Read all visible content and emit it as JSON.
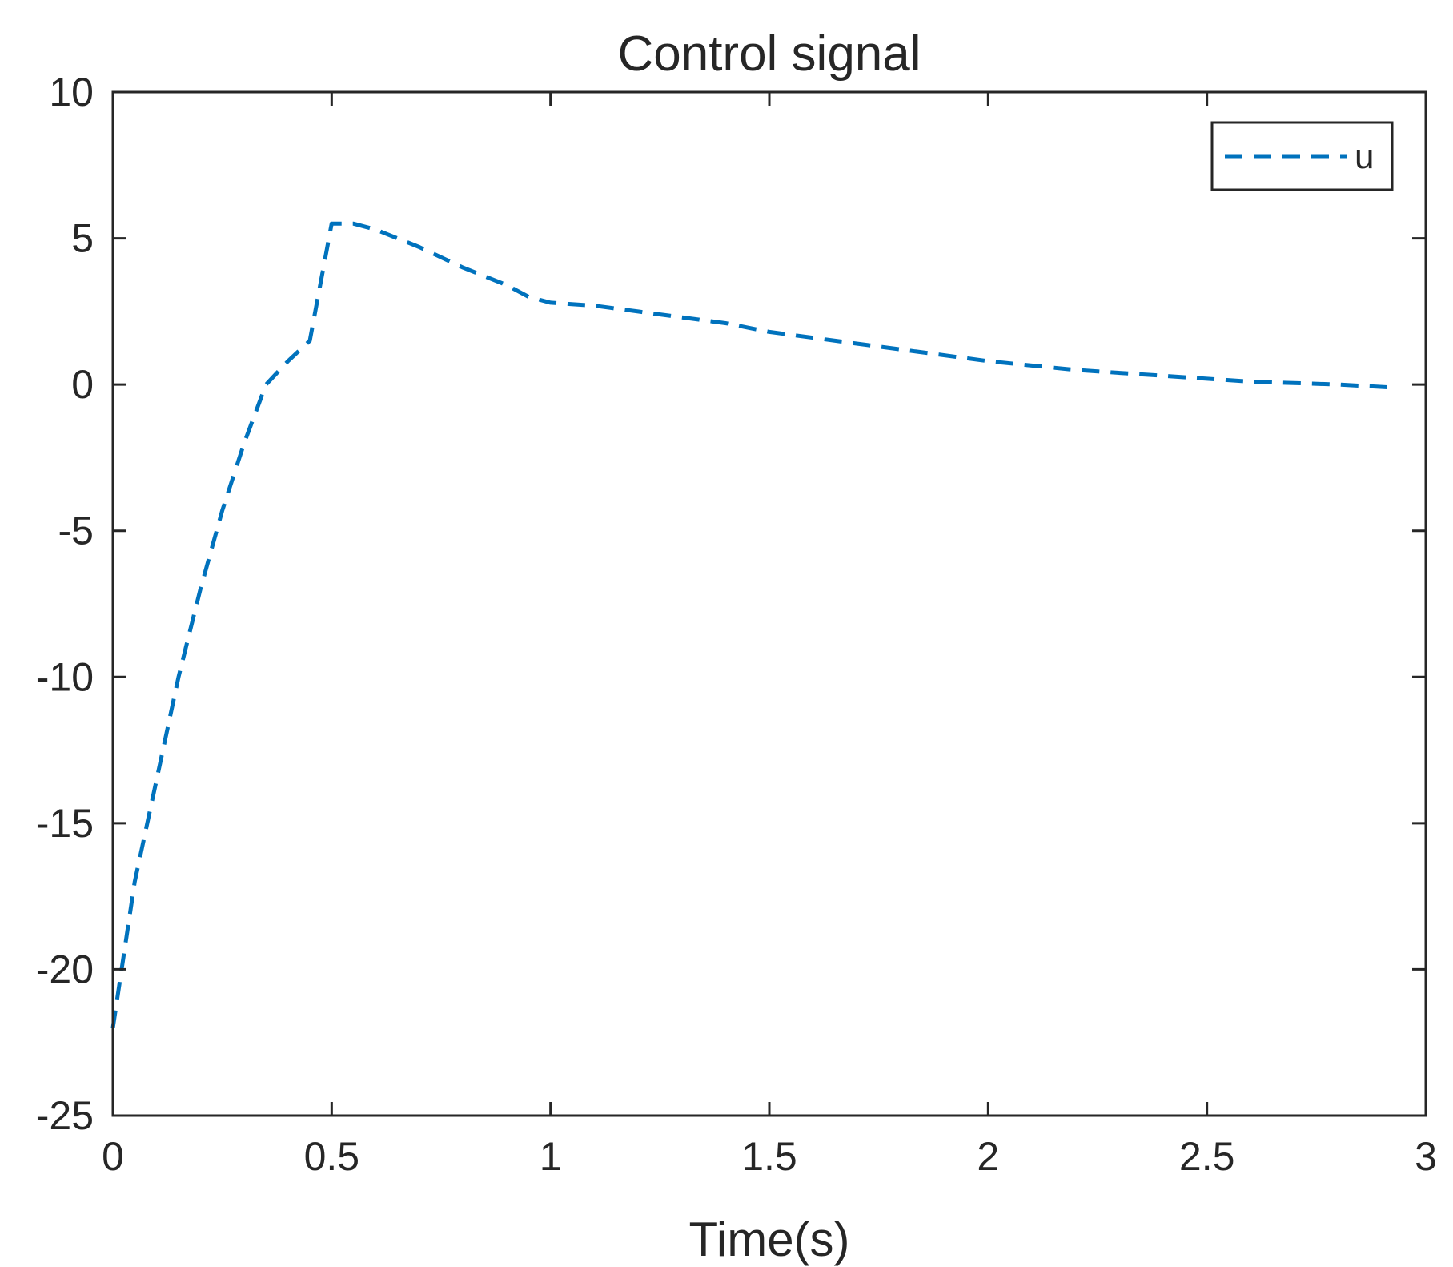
{
  "chart_data": {
    "type": "line",
    "title": "Control signal",
    "xlabel": "Time(s)",
    "ylabel": "",
    "xlim": [
      0,
      3
    ],
    "ylim": [
      -25,
      10
    ],
    "xticks": [
      0,
      0.5,
      1,
      1.5,
      2,
      2.5,
      3
    ],
    "xtick_labels": [
      "0",
      "0.5",
      "1",
      "1.5",
      "2",
      "2.5",
      "3"
    ],
    "yticks": [
      -25,
      -20,
      -15,
      -10,
      -5,
      0,
      5,
      10
    ],
    "ytick_labels": [
      "-25",
      "-20",
      "-15",
      "-10",
      "-5",
      "0",
      "5",
      "10"
    ],
    "grid": false,
    "legend_position": "top-right",
    "colors": {
      "series": "#0072BD",
      "axes": "#262626",
      "background": "#ffffff"
    },
    "series": [
      {
        "name": "u",
        "line_style": "dashed",
        "x": [
          0,
          0.03,
          0.05,
          0.1,
          0.15,
          0.2,
          0.25,
          0.3,
          0.35,
          0.4,
          0.45,
          0.5,
          0.55,
          0.6,
          0.7,
          0.8,
          0.9,
          0.95,
          1.0,
          1.1,
          1.2,
          1.3,
          1.4,
          1.5,
          1.6,
          1.8,
          2.0,
          2.2,
          2.4,
          2.6,
          2.8,
          2.92
        ],
        "y": [
          -22,
          -19,
          -17,
          -13.5,
          -10,
          -7,
          -4.3,
          -2,
          0,
          0.8,
          1.5,
          5.5,
          5.5,
          5.3,
          4.7,
          4,
          3.4,
          3.0,
          2.8,
          2.7,
          2.5,
          2.3,
          2.1,
          1.8,
          1.6,
          1.2,
          0.8,
          0.5,
          0.3,
          0.1,
          0.0,
          -0.1
        ]
      }
    ]
  }
}
